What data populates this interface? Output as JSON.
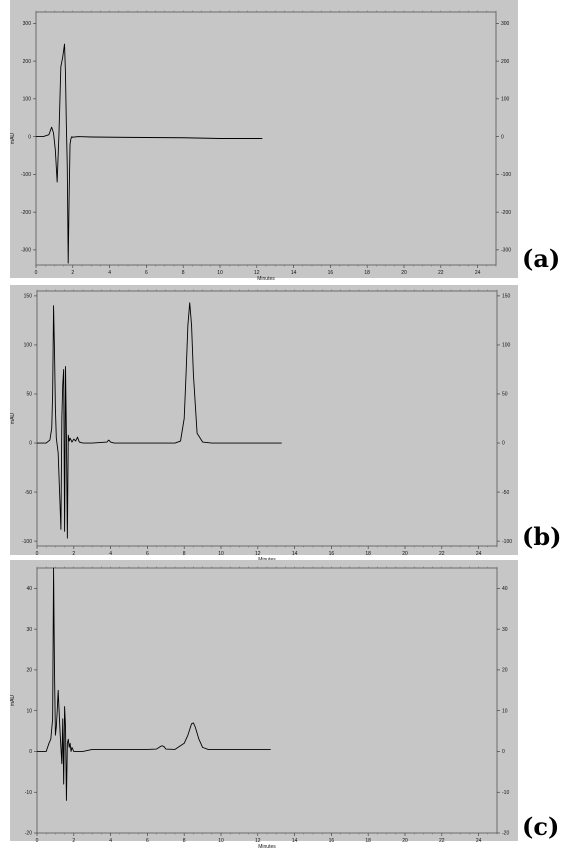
{
  "colors": {
    "plot_bg": "#c6c6c6",
    "trace": "#000000",
    "frame": "#555555"
  },
  "chart_data": [
    {
      "type": "line",
      "panel_label": "(a)",
      "xlabel": "Minutes",
      "ylabel": "mAU",
      "xlim": [
        0,
        25
      ],
      "ylim": [
        -340,
        330
      ],
      "x_ticks": [
        "0",
        "2",
        "4",
        "6",
        "8",
        "10",
        "12",
        "14",
        "16",
        "18",
        "20",
        "22",
        "24"
      ],
      "y_ticks": [
        "300",
        "200",
        "100",
        "0",
        "-100",
        "-200",
        "-300"
      ],
      "y_tick_values": [
        300,
        200,
        100,
        0,
        -100,
        -200,
        -300
      ],
      "series": [
        {
          "x": [
            0,
            0.4,
            0.7,
            0.85,
            0.95,
            1.05,
            1.15,
            1.25,
            1.35,
            1.45,
            1.55,
            1.6,
            1.65,
            1.7,
            1.75,
            1.8,
            1.85,
            1.9,
            1.95,
            2.0,
            2.1,
            2.3,
            3,
            5,
            8,
            10,
            12.3
          ],
          "y": [
            0,
            0,
            5,
            25,
            10,
            -35,
            -120,
            10,
            185,
            210,
            245,
            170,
            30,
            -80,
            -335,
            -160,
            -20,
            -5,
            0,
            -2,
            -1,
            0,
            -1,
            -2,
            -3,
            -5,
            -5
          ]
        }
      ]
    },
    {
      "type": "line",
      "panel_label": "(b)",
      "xlabel": "Minutes",
      "ylabel": "mAU",
      "xlim": [
        0,
        25
      ],
      "ylim": [
        -105,
        155
      ],
      "x_ticks": [
        "0",
        "2",
        "4",
        "6",
        "8",
        "10",
        "12",
        "14",
        "16",
        "18",
        "20",
        "22",
        "24"
      ],
      "y_ticks": [
        "150",
        "100",
        "50",
        "0",
        "-50",
        "-100"
      ],
      "y_tick_values": [
        150,
        100,
        50,
        0,
        -50,
        -100
      ],
      "series": [
        {
          "x": [
            0,
            0.5,
            0.7,
            0.8,
            0.85,
            0.9,
            0.95,
            1.0,
            1.05,
            1.15,
            1.3,
            1.35,
            1.4,
            1.45,
            1.5,
            1.55,
            1.6,
            1.65,
            1.7,
            1.75,
            1.8,
            1.9,
            2.0,
            2.1,
            2.2,
            2.3,
            2.5,
            3,
            3.8,
            3.9,
            4.0,
            4.2,
            5,
            6,
            7,
            7.5,
            7.8,
            8.0,
            8.1,
            8.2,
            8.3,
            8.4,
            8.5,
            8.7,
            9.0,
            9.5,
            10,
            11,
            12,
            13.3
          ],
          "y": [
            0,
            0,
            3,
            15,
            50,
            140,
            95,
            35,
            5,
            -10,
            -88,
            25,
            60,
            75,
            -90,
            78,
            5,
            -97,
            8,
            2,
            5,
            1,
            4,
            2,
            6,
            1,
            0,
            0,
            1,
            3,
            1,
            0,
            0,
            0,
            0,
            0,
            2,
            25,
            70,
            120,
            143,
            120,
            70,
            10,
            1,
            0,
            0,
            0,
            0,
            0
          ]
        }
      ]
    },
    {
      "type": "line",
      "panel_label": "(c)",
      "xlabel": "Minutes",
      "ylabel": "mAU",
      "xlim": [
        0,
        25
      ],
      "ylim": [
        -20,
        45
      ],
      "x_ticks": [
        "0",
        "2",
        "4",
        "6",
        "8",
        "10",
        "12",
        "14",
        "16",
        "18",
        "20",
        "22",
        "24"
      ],
      "y_ticks": [
        "40",
        "30",
        "20",
        "10",
        "0",
        "-10",
        "-20"
      ],
      "y_tick_values": [
        40,
        30,
        20,
        10,
        0,
        -10,
        -20
      ],
      "series": [
        {
          "x": [
            0,
            0.5,
            0.65,
            0.75,
            0.85,
            0.9,
            0.95,
            1.0,
            1.05,
            1.1,
            1.15,
            1.25,
            1.35,
            1.4,
            1.45,
            1.5,
            1.55,
            1.6,
            1.65,
            1.7,
            1.75,
            1.8,
            1.85,
            1.9,
            2.0,
            2.2,
            2.5,
            3,
            4,
            5,
            6,
            6.5,
            6.7,
            6.8,
            6.9,
            7.0,
            7.5,
            8.0,
            8.2,
            8.4,
            8.5,
            8.6,
            8.8,
            9.0,
            9.3,
            10,
            11,
            12,
            12.7
          ],
          "y": [
            0,
            0,
            2,
            3,
            8,
            45,
            20,
            4,
            6,
            10,
            15,
            5,
            -3,
            8,
            -8,
            11,
            6,
            -12,
            2,
            3,
            1,
            2,
            0,
            1,
            0,
            0,
            0,
            0.5,
            0.5,
            0.5,
            0.5,
            0.6,
            1.2,
            1.4,
            1.2,
            0.6,
            0.5,
            2,
            4,
            6.8,
            7,
            6,
            3,
            1,
            0.5,
            0.5,
            0.5,
            0.5,
            0.5
          ]
        }
      ]
    }
  ]
}
